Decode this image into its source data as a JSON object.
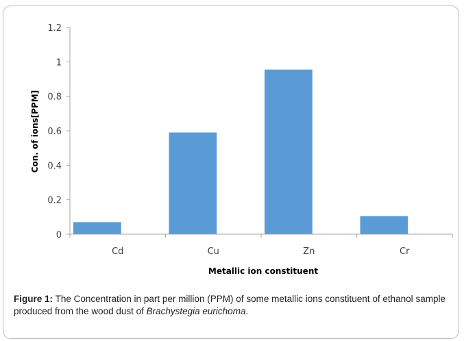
{
  "chart_data": {
    "type": "bar",
    "categories": [
      "Cd",
      "Cu",
      "Zn",
      "Cr"
    ],
    "values": [
      0.07,
      0.59,
      0.955,
      0.105
    ],
    "xlabel": "Metallic ion constituent",
    "ylabel": "Con. of ions[PPM]",
    "ylim": [
      0,
      1.2
    ],
    "yticks": [
      "0",
      "0.2",
      "0.4",
      "0.6",
      "0.8",
      "1",
      "1.2"
    ],
    "grid": false,
    "bar_color": "#5b9bd5"
  },
  "caption": {
    "label": "Figure 1:",
    "text": " The Concentration in part per million (PPM) of some metallic ions constituent of ethanol sample produced from the wood dust of ",
    "species": "Brachystegia eurichoma",
    "end": "."
  }
}
